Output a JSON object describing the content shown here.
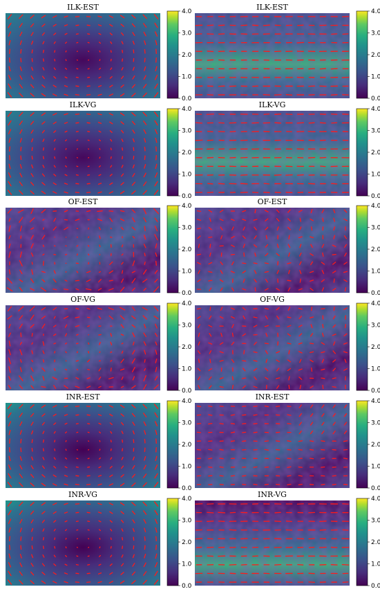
{
  "figure": {
    "colormap": "viridis",
    "vector_color": "#ff1a1a",
    "colorbar_ticks": [
      "0.0",
      "1.0",
      "2.0",
      "3.0",
      "4.0"
    ],
    "colorbar_range": [
      0.0,
      4.0
    ],
    "panels": [
      {
        "title": "ILK-EST",
        "field": "rotation-synthetic"
      },
      {
        "title": "ILK-EST",
        "field": "horizontal-flow-real"
      },
      {
        "title": "ILK-VG",
        "field": "rotation-synthetic"
      },
      {
        "title": "ILK-VG",
        "field": "horizontal-flow-real"
      },
      {
        "title": "OF-EST",
        "field": "noisy-rotation-synthetic"
      },
      {
        "title": "OF-EST",
        "field": "noisy-real"
      },
      {
        "title": "OF-VG",
        "field": "noisy-rotation-synthetic"
      },
      {
        "title": "OF-VG",
        "field": "noisy-real"
      },
      {
        "title": "INR-EST",
        "field": "rotation-synthetic"
      },
      {
        "title": "INR-EST",
        "field": "noisy-horizontal-real"
      },
      {
        "title": "INR-VG",
        "field": "rotation-synthetic"
      },
      {
        "title": "INR-VG",
        "field": "horizontal-flow-real"
      }
    ]
  }
}
